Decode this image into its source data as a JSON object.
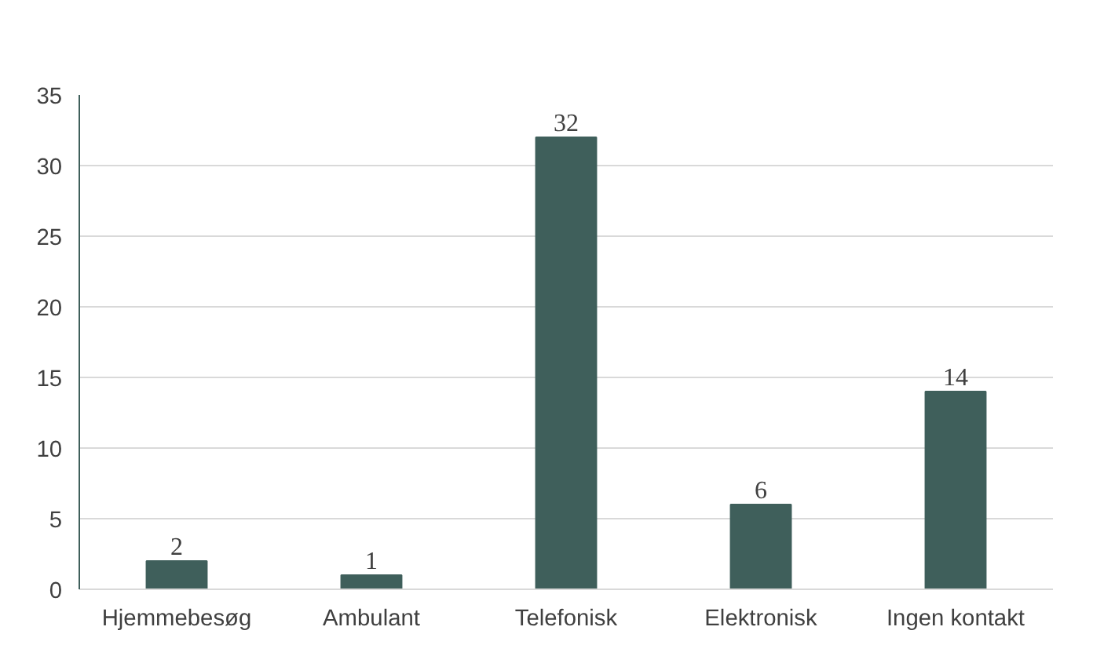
{
  "chart_data": {
    "type": "bar",
    "categories": [
      "Hjemmebesøg",
      "Ambulant",
      "Telefonisk",
      "Elektronisk",
      "Ingen kontakt"
    ],
    "values": [
      2,
      1,
      32,
      6,
      14
    ],
    "color": "#3f5f5b",
    "ylim": [
      0,
      35
    ],
    "yticks": [
      0,
      5,
      10,
      15,
      20,
      25,
      30,
      35
    ],
    "grid": "y",
    "data_labels": true
  }
}
